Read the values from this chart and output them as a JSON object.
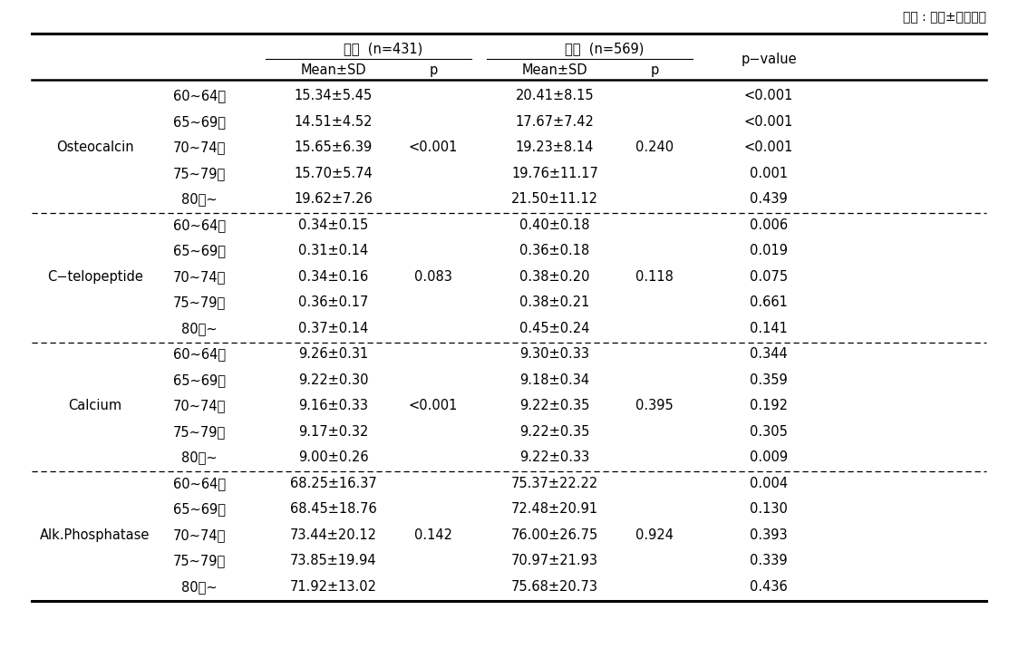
{
  "unit_text": "단위 : 평균±표준편차",
  "col_headers_male": "남자  (n=431)",
  "col_headers_female": "여자  (n=569)",
  "col_header_pvalue": "p−value",
  "sub_header_mean": "Mean±SD",
  "sub_header_p": "p",
  "sections": [
    {
      "label": "Osteocalcin",
      "p_male": "<0.001",
      "p_female": "0.240",
      "rows": [
        {
          "age": "60~64세",
          "male_mean": "15.34±5.45",
          "female_mean": "20.41±8.15",
          "p_value": "<0.001"
        },
        {
          "age": "65~69세",
          "male_mean": "14.51±4.52",
          "female_mean": "17.67±7.42",
          "p_value": "<0.001"
        },
        {
          "age": "70~74세",
          "male_mean": "15.65±6.39",
          "female_mean": "19.23±8.14",
          "p_value": "<0.001"
        },
        {
          "age": "75~79세",
          "male_mean": "15.70±5.74",
          "female_mean": "19.76±11.17",
          "p_value": "0.001"
        },
        {
          "age": "80세~",
          "male_mean": "19.62±7.26",
          "female_mean": "21.50±11.12",
          "p_value": "0.439"
        }
      ]
    },
    {
      "label": "C−telopeptide",
      "p_male": "0.083",
      "p_female": "0.118",
      "rows": [
        {
          "age": "60~64세",
          "male_mean": "0.34±0.15",
          "female_mean": "0.40±0.18",
          "p_value": "0.006"
        },
        {
          "age": "65~69세",
          "male_mean": "0.31±0.14",
          "female_mean": "0.36±0.18",
          "p_value": "0.019"
        },
        {
          "age": "70~74세",
          "male_mean": "0.34±0.16",
          "female_mean": "0.38±0.20",
          "p_value": "0.075"
        },
        {
          "age": "75~79세",
          "male_mean": "0.36±0.17",
          "female_mean": "0.38±0.21",
          "p_value": "0.661"
        },
        {
          "age": "80세~",
          "male_mean": "0.37±0.14",
          "female_mean": "0.45±0.24",
          "p_value": "0.141"
        }
      ]
    },
    {
      "label": "Calcium",
      "p_male": "<0.001",
      "p_female": "0.395",
      "rows": [
        {
          "age": "60~64세",
          "male_mean": "9.26±0.31",
          "female_mean": "9.30±0.33",
          "p_value": "0.344"
        },
        {
          "age": "65~69세",
          "male_mean": "9.22±0.30",
          "female_mean": "9.18±0.34",
          "p_value": "0.359"
        },
        {
          "age": "70~74세",
          "male_mean": "9.16±0.33",
          "female_mean": "9.22±0.35",
          "p_value": "0.192"
        },
        {
          "age": "75~79세",
          "male_mean": "9.17±0.32",
          "female_mean": "9.22±0.35",
          "p_value": "0.305"
        },
        {
          "age": "80세~",
          "male_mean": "9.00±0.26",
          "female_mean": "9.22±0.33",
          "p_value": "0.009"
        }
      ]
    },
    {
      "label": "Alk.Phosphatase",
      "p_male": "0.142",
      "p_female": "0.924",
      "rows": [
        {
          "age": "60~64세",
          "male_mean": "68.25±16.37",
          "female_mean": "75.37±22.22",
          "p_value": "0.004"
        },
        {
          "age": "65~69세",
          "male_mean": "68.45±18.76",
          "female_mean": "72.48±20.91",
          "p_value": "0.130"
        },
        {
          "age": "70~74세",
          "male_mean": "73.44±20.12",
          "female_mean": "76.00±26.75",
          "p_value": "0.393"
        },
        {
          "age": "75~79세",
          "male_mean": "73.85±19.94",
          "female_mean": "70.97±21.93",
          "p_value": "0.339"
        },
        {
          "age": "80세~",
          "male_mean": "71.92±13.02",
          "female_mean": "75.68±20.73",
          "p_value": "0.436"
        }
      ]
    }
  ],
  "font_size": 10.5,
  "bg_color": "#ffffff",
  "text_color": "#000000",
  "figwidth": 11.23,
  "figheight": 7.37,
  "dpi": 100
}
